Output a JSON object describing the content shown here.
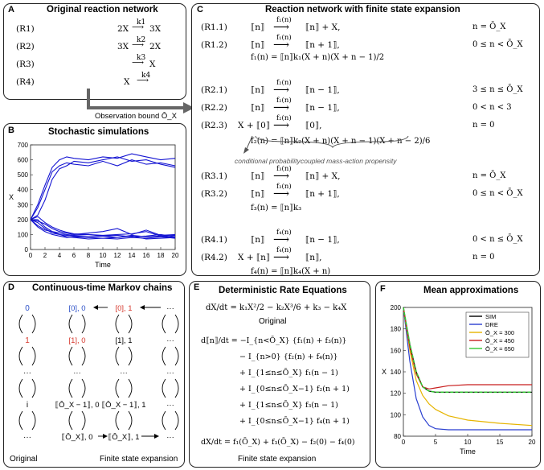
{
  "panelA": {
    "label": "A",
    "title": "Original reaction network",
    "reactions": [
      {
        "id": "(R1)",
        "lhs": "2X",
        "rate": "k1",
        "rhs": "3X"
      },
      {
        "id": "(R2)",
        "lhs": "3X",
        "rate": "k2",
        "rhs": "2X"
      },
      {
        "id": "(R3)",
        "lhs": "",
        "rate": "k3",
        "rhs": "X"
      },
      {
        "id": "(R4)",
        "lhs": "X",
        "rate": "k4",
        "rhs": ""
      }
    ],
    "observation_bound": "Observation bound Ō_X"
  },
  "panelB": {
    "label": "B",
    "title": "Stochastic simulations",
    "chart_data": {
      "type": "line",
      "xlabel": "Time",
      "ylabel": "X",
      "xlim": [
        0,
        20
      ],
      "ylim": [
        0,
        700
      ],
      "xticks": [
        "0",
        "2",
        "4",
        "6",
        "8",
        "10",
        "12",
        "14",
        "16",
        "18",
        "20"
      ],
      "yticks": [
        "0",
        "100",
        "200",
        "300",
        "400",
        "500",
        "600",
        "700"
      ],
      "series_color": "#1414d2",
      "series": [
        {
          "x": [
            0,
            1,
            2,
            3,
            4,
            5,
            6,
            8,
            10,
            12,
            14,
            16,
            18,
            20
          ],
          "y": [
            200,
            280,
            400,
            520,
            560,
            580,
            570,
            560,
            590,
            560,
            600,
            570,
            580,
            560
          ]
        },
        {
          "x": [
            0,
            1,
            2,
            3,
            4,
            5,
            6,
            8,
            10,
            12,
            14,
            16,
            18,
            20
          ],
          "y": [
            200,
            300,
            430,
            550,
            600,
            620,
            610,
            600,
            620,
            610,
            640,
            620,
            600,
            610
          ]
        },
        {
          "x": [
            0,
            1,
            2,
            3,
            4,
            5,
            6,
            8,
            10,
            12,
            14,
            16,
            18,
            20
          ],
          "y": [
            200,
            230,
            330,
            470,
            540,
            560,
            590,
            580,
            600,
            620,
            590,
            600,
            570,
            550
          ]
        },
        {
          "x": [
            0,
            1,
            2,
            3,
            4,
            5,
            6,
            8,
            10,
            12,
            14,
            16,
            18,
            20
          ],
          "y": [
            200,
            180,
            140,
            110,
            100,
            95,
            90,
            85,
            90,
            80,
            95,
            85,
            90,
            80
          ]
        },
        {
          "x": [
            0,
            1,
            2,
            3,
            4,
            5,
            6,
            8,
            10,
            12,
            14,
            16,
            18,
            20
          ],
          "y": [
            200,
            160,
            130,
            120,
            110,
            100,
            95,
            100,
            90,
            95,
            85,
            90,
            100,
            85
          ]
        },
        {
          "x": [
            0,
            1,
            2,
            3,
            4,
            5,
            6,
            8,
            10,
            12,
            14,
            16,
            18,
            20
          ],
          "y": [
            200,
            200,
            150,
            120,
            100,
            85,
            80,
            70,
            75,
            80,
            90,
            70,
            75,
            80
          ]
        },
        {
          "x": [
            0,
            1,
            2,
            3,
            4,
            5,
            6,
            8,
            10,
            12,
            14,
            16,
            18,
            20
          ],
          "y": [
            200,
            190,
            170,
            140,
            120,
            110,
            100,
            110,
            120,
            140,
            100,
            130,
            95,
            100
          ]
        },
        {
          "x": [
            0,
            1,
            2,
            3,
            4,
            5,
            6,
            8,
            10,
            12,
            14,
            16,
            18,
            20
          ],
          "y": [
            200,
            220,
            180,
            150,
            130,
            115,
            105,
            100,
            95,
            100,
            105,
            120,
            90,
            95
          ]
        },
        {
          "x": [
            0,
            1,
            2,
            3,
            4,
            5,
            6,
            8,
            10,
            12,
            14,
            16,
            18,
            20
          ],
          "y": [
            200,
            150,
            120,
            100,
            90,
            80,
            85,
            80,
            75,
            70,
            80,
            75,
            85,
            75
          ]
        }
      ]
    }
  },
  "panelC": {
    "label": "C",
    "title": "Reaction network with finite state expansion",
    "rows": [
      {
        "id": "(R1.1)",
        "lhs": "⟦n⟧",
        "rate": "f₁(n)",
        "rhs": "⟦n⟧ + X,",
        "cond": "n = Ō_X"
      },
      {
        "id": "(R1.2)",
        "lhs": "⟦n⟧",
        "rate": "f₁(n)",
        "rhs": "⟦n + 1⟧,",
        "cond": "0 ≤ n < Ō_X"
      },
      {
        "id": "",
        "lhs": "",
        "rate": "",
        "rhs": "f₁(n) = ⟦n⟧k₁(X + n)(X + n − 1)/2",
        "cond": ""
      },
      {
        "id": "(R2.1)",
        "lhs": "⟦n⟧",
        "rate": "f₂(n)",
        "rhs": "⟦n − 1⟧,",
        "cond": "3 ≤ n ≤ Ō_X"
      },
      {
        "id": "(R2.2)",
        "lhs": "⟦n⟧",
        "rate": "f₂(n)",
        "rhs": "⟦n − 1⟧,",
        "cond": "0 < n < 3"
      },
      {
        "id": "(R2.3)",
        "lhs": "X + ⟦0⟧",
        "rate": "f₂(n)",
        "rhs": "⟦0⟧,",
        "cond": "n = 0"
      },
      {
        "id": "",
        "lhs": "",
        "rate": "",
        "rhs": "f₂(n) = ⟦n⟧k₂(X + n)(X + n − 1)(X + n − 2)/6",
        "cond": ""
      },
      {
        "id": "(R3.1)",
        "lhs": "⟦n⟧",
        "rate": "f₃(n)",
        "rhs": "⟦n⟧ + X,",
        "cond": "n = Ō_X"
      },
      {
        "id": "(R3.2)",
        "lhs": "⟦n⟧",
        "rate": "f₃(n)",
        "rhs": "⟦n + 1⟧,",
        "cond": "0 ≤ n < Ō_X"
      },
      {
        "id": "",
        "lhs": "",
        "rate": "",
        "rhs": "f₃(n) = ⟦n⟧k₃",
        "cond": ""
      },
      {
        "id": "(R4.1)",
        "lhs": "⟦n⟧",
        "rate": "f₄(n)",
        "rhs": "⟦n − 1⟧,",
        "cond": "0 < n ≤ Ō_X"
      },
      {
        "id": "(R4.2)",
        "lhs": "X + ⟦n⟧",
        "rate": "f₄(n)",
        "rhs": "⟦n⟧,",
        "cond": "n = 0"
      },
      {
        "id": "",
        "lhs": "",
        "rate": "",
        "rhs": "f₄(n) = ⟦n⟧k₄(X + n)",
        "cond": ""
      }
    ],
    "notes": {
      "conditional": "conditional probability",
      "coupled": "coupled mass-action propensity"
    }
  },
  "panelD": {
    "label": "D",
    "title": "Continuous-time Markov chains",
    "orig_states": [
      "0",
      "1",
      "···",
      "i",
      "···"
    ],
    "expanded_states": [
      [
        "[0], 0",
        "[0], 1",
        "···"
      ],
      [
        "[1], 0",
        "[1], 1",
        "···"
      ],
      [
        "···",
        "···",
        "···"
      ],
      [
        "⟦Ō_X − 1⟧, 0",
        "⟦Ō_X − 1⟧, 1",
        "···"
      ],
      [
        "⟦Ō_X⟧, 0",
        "⟦Ō_X⟧, 1",
        "···"
      ]
    ],
    "caption_left": "Original",
    "caption_right": "Finite state expansion",
    "colors": {
      "blue": "#2f52c8",
      "red": "#d63a2f"
    }
  },
  "panelE": {
    "label": "E",
    "title": "Deterministic Rate Equations",
    "original_eq": "dX/dt = k₁X²/2 − k₂X³/6 + k₃ − k₄X",
    "original_caption": "Original",
    "expansion_lines": [
      "d⟦n⟧/dt = −I_{n<Ō_X} {f₁(n) + f₃(n)}",
      "− I_{n>0} {f₂(n) + f₄(n)}",
      "+ I_{1≤n≤Ō_X} f₁(n − 1)",
      "+ I_{0≤n≤Ō_X−1} f₂(n + 1)",
      "+ I_{1≤n≤Ō_X} f₃(n − 1)",
      "+ I_{0≤n≤Ō_X−1} f₄(n + 1)"
    ],
    "final_eq": "dX/dt = f₁(Ō_X) + f₃(Ō_X) − f₂(0) − f₄(0)",
    "expansion_caption": "Finite state expansion"
  },
  "panelF": {
    "label": "F",
    "title": "Mean approximations",
    "chart_data": {
      "type": "line",
      "xlabel": "Time",
      "ylabel": "X",
      "xlim": [
        0,
        20
      ],
      "ylim": [
        80,
        200
      ],
      "xticks": [
        "0",
        "5",
        "10",
        "15",
        "20"
      ],
      "yticks": [
        "80",
        "100",
        "120",
        "140",
        "160",
        "180",
        "200"
      ],
      "series": [
        {
          "name": "SIM",
          "color": "#000000",
          "x": [
            0,
            1,
            2,
            3,
            4,
            5,
            7,
            10,
            15,
            20
          ],
          "y": [
            200,
            165,
            140,
            126,
            122,
            121,
            121,
            121,
            121,
            121
          ]
        },
        {
          "name": "DRE",
          "color": "#2a3fd0",
          "x": [
            0,
            1,
            2,
            3,
            4,
            5,
            7,
            10,
            15,
            20
          ],
          "y": [
            200,
            150,
            115,
            98,
            90,
            87,
            86,
            86,
            86,
            86
          ]
        },
        {
          "name": "Ō_X = 300",
          "color": "#e6b400",
          "x": [
            0,
            1,
            2,
            3,
            4,
            5,
            7,
            10,
            15,
            20
          ],
          "y": [
            200,
            160,
            132,
            118,
            110,
            105,
            99,
            95,
            92,
            90
          ]
        },
        {
          "name": "Ō_X = 450",
          "color": "#c81e1e",
          "x": [
            0,
            1,
            2,
            3,
            4,
            5,
            7,
            10,
            15,
            20
          ],
          "y": [
            200,
            163,
            138,
            126,
            124,
            125,
            127,
            128,
            128,
            128
          ]
        },
        {
          "name": "Ō_X = 650",
          "color": "#32c832",
          "x": [
            0,
            1,
            2,
            3,
            4,
            5,
            7,
            10,
            15,
            20
          ],
          "y": [
            200,
            166,
            140,
            126,
            122,
            121,
            121,
            121,
            121,
            121
          ]
        }
      ]
    }
  }
}
